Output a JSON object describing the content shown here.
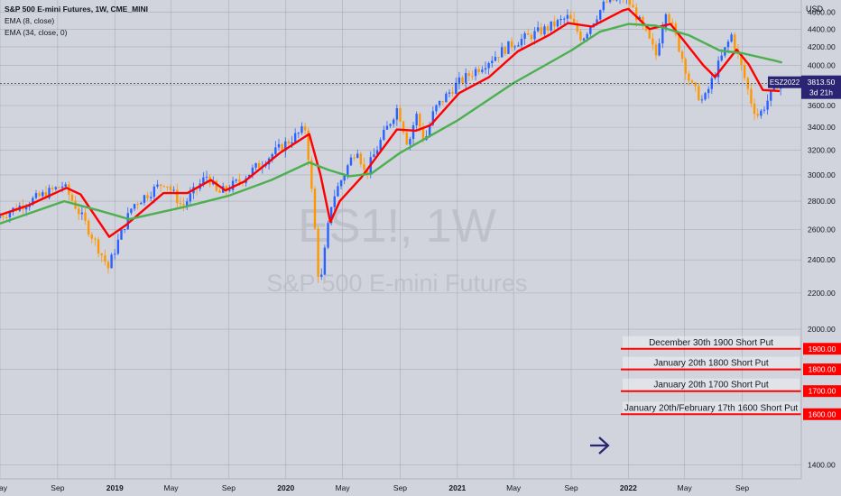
{
  "header": {
    "title": "S&P 500 E-mini Futures, 1W, CME_MINI",
    "indicators": [
      "EMA (8, close)",
      "EMA (34, close, 0)"
    ]
  },
  "watermark": {
    "symbol": "ES1!, 1W",
    "name": "S&P 500 E-mini Futures"
  },
  "price_axis": {
    "currency": "USD"
  },
  "last_price": {
    "symbol": "ESZ2022",
    "price": "3813.50",
    "countdown": "3d 21h"
  },
  "colors": {
    "background": "#d1d4dc",
    "grid": "#8a8e99",
    "candle_up": "#2962ff",
    "candle_down": "#ff9800",
    "ema_fast": "#ff0000",
    "ema_slow": "#4caf50",
    "annotation_line": "#ff0000",
    "annotation_box": "#ffffff",
    "badge": "#2a2473",
    "arrow": "#2a2473"
  },
  "annotations": [
    {
      "label": "December 30th 1900 Short Put",
      "price": 1900,
      "price_label": "1900.00"
    },
    {
      "label": "January 20th 1800 Short Put",
      "price": 1800,
      "price_label": "1800.00"
    },
    {
      "label": "January 20th 1700 Short Put",
      "price": 1700,
      "price_label": "1700.00"
    },
    {
      "label": "January 20th/February 17th 1600 Short Put",
      "price": 1600,
      "price_label": "1600.00"
    }
  ],
  "chart_data": {
    "type": "candlestick",
    "title": "S&P 500 E-mini Futures, 1W, CME_MINI",
    "interval": "1W",
    "y_scale": "log",
    "ylim": [
      1350,
      4750
    ],
    "y_ticks": [
      1400,
      1600,
      1800,
      2000,
      2200,
      2400,
      2600,
      2800,
      3000,
      3200,
      3400,
      3600,
      3800,
      4000,
      4200,
      4400,
      4600
    ],
    "xlim": [
      "2018-05-01",
      "2023-01-05"
    ],
    "x_ticks": [
      {
        "date": "2018-05-01",
        "label": "May"
      },
      {
        "date": "2018-09-01",
        "label": "Sep"
      },
      {
        "date": "2019-01-01",
        "label": "2019"
      },
      {
        "date": "2019-05-01",
        "label": "May"
      },
      {
        "date": "2019-09-01",
        "label": "Sep"
      },
      {
        "date": "2020-01-01",
        "label": "2020"
      },
      {
        "date": "2020-05-01",
        "label": "May"
      },
      {
        "date": "2020-09-01",
        "label": "Sep"
      },
      {
        "date": "2021-01-01",
        "label": "2021"
      },
      {
        "date": "2021-05-01",
        "label": "May"
      },
      {
        "date": "2021-09-01",
        "label": "Sep"
      },
      {
        "date": "2022-01-01",
        "label": "2022"
      },
      {
        "date": "2022-05-01",
        "label": "May"
      },
      {
        "date": "2022-09-01",
        "label": "Sep"
      }
    ],
    "grid": true,
    "series": [
      {
        "name": "EMA (8, close)",
        "color": "#ff0000",
        "points": [
          [
            "2018-05-01",
            2700
          ],
          [
            "2018-07-01",
            2770
          ],
          [
            "2018-09-20",
            2900
          ],
          [
            "2018-10-20",
            2850
          ],
          [
            "2018-12-20",
            2550
          ],
          [
            "2019-01-25",
            2630
          ],
          [
            "2019-04-15",
            2860
          ],
          [
            "2019-06-05",
            2860
          ],
          [
            "2019-07-25",
            2960
          ],
          [
            "2019-08-25",
            2880
          ],
          [
            "2019-10-05",
            2950
          ],
          [
            "2019-12-20",
            3180
          ],
          [
            "2020-02-20",
            3340
          ],
          [
            "2020-03-15",
            3000
          ],
          [
            "2020-04-05",
            2650
          ],
          [
            "2020-04-25",
            2800
          ],
          [
            "2020-06-10",
            2980
          ],
          [
            "2020-08-25",
            3380
          ],
          [
            "2020-10-05",
            3370
          ],
          [
            "2020-11-05",
            3420
          ],
          [
            "2021-01-05",
            3720
          ],
          [
            "2021-03-10",
            3880
          ],
          [
            "2021-05-10",
            4150
          ],
          [
            "2021-07-15",
            4330
          ],
          [
            "2021-08-25",
            4470
          ],
          [
            "2021-10-15",
            4430
          ],
          [
            "2021-12-20",
            4620
          ],
          [
            "2022-01-01",
            4640
          ],
          [
            "2022-02-15",
            4400
          ],
          [
            "2022-04-01",
            4460
          ],
          [
            "2022-06-10",
            4000
          ],
          [
            "2022-07-05",
            3880
          ],
          [
            "2022-08-20",
            4170
          ],
          [
            "2022-09-15",
            4010
          ],
          [
            "2022-10-15",
            3750
          ],
          [
            "2022-11-20",
            3740
          ]
        ]
      },
      {
        "name": "EMA (34, close, 0)",
        "color": "#4caf50",
        "points": [
          [
            "2018-05-01",
            2640
          ],
          [
            "2018-09-15",
            2800
          ],
          [
            "2018-12-01",
            2730
          ],
          [
            "2019-02-01",
            2670
          ],
          [
            "2019-06-01",
            2760
          ],
          [
            "2019-09-01",
            2840
          ],
          [
            "2019-12-01",
            2960
          ],
          [
            "2020-02-20",
            3100
          ],
          [
            "2020-04-01",
            3040
          ],
          [
            "2020-05-15",
            2990
          ],
          [
            "2020-07-01",
            3010
          ],
          [
            "2020-09-01",
            3180
          ],
          [
            "2021-01-01",
            3460
          ],
          [
            "2021-05-01",
            3820
          ],
          [
            "2021-09-01",
            4160
          ],
          [
            "2021-11-01",
            4370
          ],
          [
            "2022-01-01",
            4460
          ],
          [
            "2022-03-01",
            4440
          ],
          [
            "2022-05-10",
            4330
          ],
          [
            "2022-07-15",
            4160
          ],
          [
            "2022-09-01",
            4130
          ],
          [
            "2022-11-10",
            4050
          ],
          [
            "2022-11-25",
            4030
          ]
        ]
      }
    ],
    "candles_shape": [
      [
        "2018-05-01",
        2680
      ],
      [
        "2018-09-20",
        2920
      ],
      [
        "2018-12-25",
        2350
      ],
      [
        "2019-02-15",
        2770
      ],
      [
        "2019-04-25",
        2950
      ],
      [
        "2019-06-01",
        2760
      ],
      [
        "2019-07-25",
        3000
      ],
      [
        "2019-08-15",
        2850
      ],
      [
        "2019-10-01",
        2950
      ],
      [
        "2020-02-19",
        3390
      ],
      [
        "2020-03-20",
        2200
      ],
      [
        "2020-04-15",
        2800
      ],
      [
        "2020-06-08",
        3230
      ],
      [
        "2020-06-25",
        3000
      ],
      [
        "2020-09-02",
        3580
      ],
      [
        "2020-09-25",
        3240
      ],
      [
        "2020-10-12",
        3520
      ],
      [
        "2020-10-30",
        3270
      ],
      [
        "2020-11-20",
        3560
      ],
      [
        "2021-01-05",
        3800
      ],
      [
        "2021-05-07",
        4240
      ],
      [
        "2021-07-15",
        4400
      ],
      [
        "2021-09-02",
        4540
      ],
      [
        "2021-10-01",
        4290
      ],
      [
        "2021-11-20",
        4720
      ],
      [
        "2022-01-03",
        4790
      ],
      [
        "2022-03-08",
        4110
      ],
      [
        "2022-03-29",
        4640
      ],
      [
        "2022-05-20",
        3810
      ],
      [
        "2022-06-17",
        3630
      ],
      [
        "2022-08-16",
        4330
      ],
      [
        "2022-09-30",
        3590
      ],
      [
        "2022-10-13",
        3500
      ],
      [
        "2022-11-22",
        3813.5
      ]
    ],
    "last": {
      "symbol": "ESZ2022",
      "price": 3813.5,
      "countdown": "3d 21h"
    },
    "hlines": [
      1900,
      1800,
      1700,
      1600
    ]
  }
}
